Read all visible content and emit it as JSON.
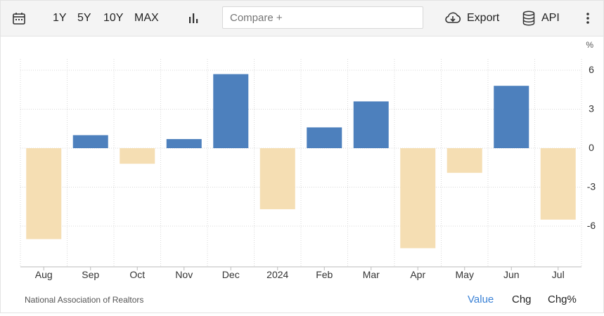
{
  "toolbar": {
    "ranges": [
      "1Y",
      "5Y",
      "10Y",
      "MAX"
    ],
    "compare_placeholder": "Compare +",
    "export_label": "Export",
    "api_label": "API"
  },
  "footer": {
    "source": "National Association of Realtors",
    "views": [
      "Value",
      "Chg",
      "Chg%"
    ],
    "active_view": "Value"
  },
  "colors": {
    "positive": "#4d80bd",
    "negative": "#f5deb3",
    "grid": "#d9d9d9",
    "axis": "#333333"
  },
  "chart_data": {
    "type": "bar",
    "categories": [
      "Aug",
      "Sep",
      "Oct",
      "Nov",
      "Dec",
      "2024",
      "Feb",
      "Mar",
      "Apr",
      "May",
      "Jun",
      "Jul"
    ],
    "values": [
      -7.0,
      1.0,
      -1.2,
      0.7,
      5.7,
      -4.7,
      1.6,
      3.6,
      -7.7,
      -1.9,
      4.8,
      -5.5
    ],
    "yticks": [
      6,
      3,
      0,
      -3,
      -6
    ],
    "ylim": [
      -9,
      7
    ],
    "unit": "%",
    "grid": true,
    "y_axis_position": "right"
  }
}
